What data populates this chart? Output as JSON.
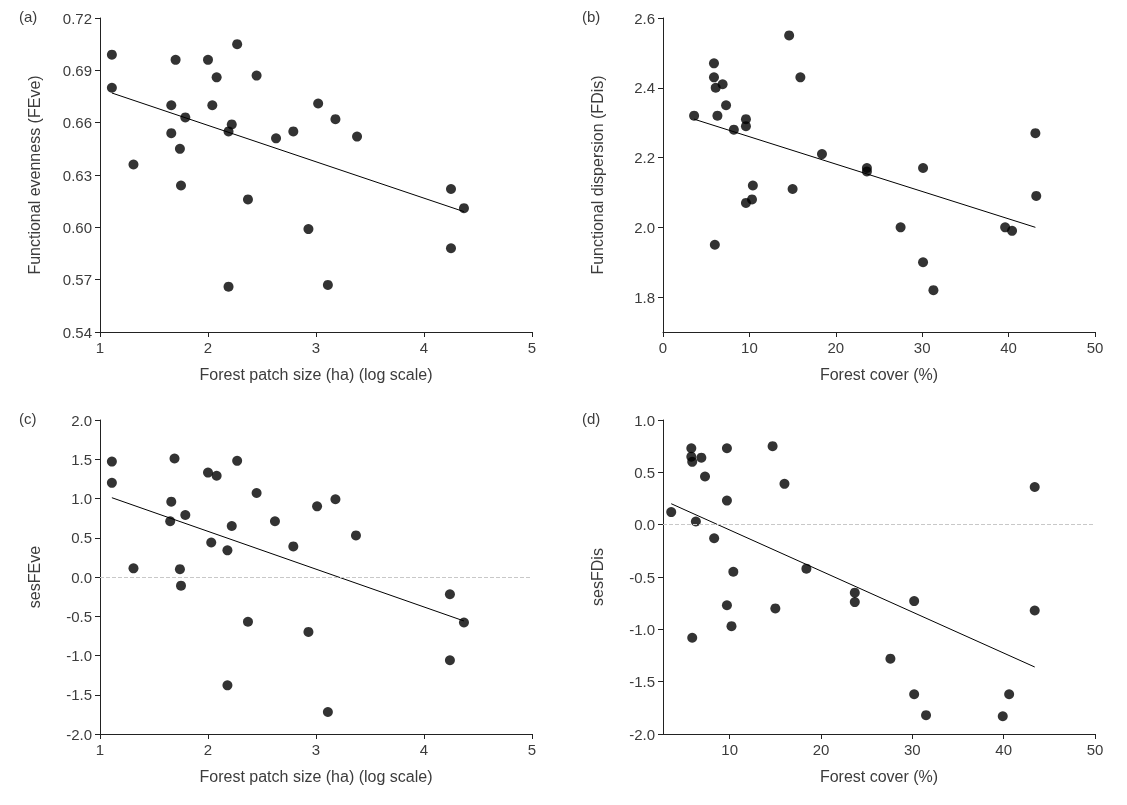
{
  "chart_data": [
    {
      "type": "scatter",
      "title": "(a)",
      "xlabel": "Forest patch size (ha) (log scale)",
      "ylabel": "Functional evenness (FEve)",
      "xlim": [
        1,
        5
      ],
      "xticks": [
        1,
        2,
        3,
        4,
        5
      ],
      "ylim": [
        0.54,
        0.72
      ],
      "yticks": [
        {
          "value": 0.54,
          "label": "0.54"
        },
        {
          "value": 0.57,
          "label": "0.57"
        },
        {
          "value": 0.6,
          "label": "0.60"
        },
        {
          "value": 0.63,
          "label": "0.63"
        },
        {
          "value": 0.66,
          "label": "0.66"
        },
        {
          "value": 0.69,
          "label": "0.69"
        },
        {
          "value": 0.72,
          "label": "0.72"
        }
      ],
      "marker": "circle",
      "series": [
        {
          "color": "#000000",
          "x": [
            1.11,
            1.11,
            1.7,
            2.0,
            2.27,
            2.08,
            2.45,
            1.66,
            2.04,
            3.02,
            1.79,
            3.18,
            2.22,
            2.19,
            1.66,
            2.79,
            2.63,
            3.38,
            1.74,
            1.31,
            1.75,
            2.37,
            4.25,
            4.37,
            2.93,
            4.25,
            2.19,
            3.11
          ],
          "values": [
            0.699,
            0.68,
            0.696,
            0.696,
            0.705,
            0.686,
            0.687,
            0.67,
            0.67,
            0.671,
            0.663,
            0.662,
            0.659,
            0.655,
            0.654,
            0.655,
            0.651,
            0.652,
            0.645,
            0.636,
            0.624,
            0.616,
            0.622,
            0.611,
            0.599,
            0.588,
            0.566,
            0.567
          ]
        },
        {
          "type": "line",
          "color": "#000000",
          "marker": "none",
          "x": [
            1.11,
            4.37
          ],
          "values": [
            0.677,
            0.609
          ]
        }
      ]
    },
    {
      "type": "scatter",
      "title": "(b)",
      "xlabel": "Forest cover (%)",
      "ylabel": "Functional dispersion (FDis)",
      "xlim": [
        0,
        50
      ],
      "xticks": [
        0,
        10,
        20,
        30,
        40,
        50
      ],
      "ylim": [
        1.7,
        2.6
      ],
      "yticks": [
        {
          "value": 1.8,
          "label": "1.8"
        },
        {
          "value": 2.0,
          "label": "2.0"
        },
        {
          "value": 2.2,
          "label": "2.2"
        },
        {
          "value": 2.4,
          "label": "2.4"
        },
        {
          "value": 2.6,
          "label": "2.6"
        }
      ],
      "marker": "circle",
      "series": [
        {
          "color": "#000000",
          "x": [
            3.6,
            5.9,
            5.9,
            6.1,
            6.9,
            6.3,
            7.3,
            8.2,
            9.6,
            9.6,
            14.6,
            15.9,
            18.4,
            23.6,
            23.6,
            30.1,
            43.1,
            43.2,
            10.4,
            10.3,
            9.6,
            15.0,
            27.5,
            39.6,
            40.4,
            6.0,
            30.1,
            31.3
          ],
          "values": [
            2.32,
            2.47,
            2.43,
            2.4,
            2.41,
            2.32,
            2.35,
            2.28,
            2.31,
            2.29,
            2.55,
            2.43,
            2.21,
            2.17,
            2.16,
            2.17,
            2.27,
            2.09,
            2.12,
            2.08,
            2.07,
            2.11,
            2.0,
            2.0,
            1.99,
            1.95,
            1.9,
            1.82
          ]
        },
        {
          "type": "line",
          "color": "#000000",
          "marker": "none",
          "x": [
            3.6,
            43.1
          ],
          "values": [
            2.31,
            2.0
          ]
        }
      ]
    },
    {
      "type": "scatter",
      "title": "(c)",
      "xlabel": "Forest patch size (ha) (log scale)",
      "ylabel": "sesFEve",
      "xlim": [
        1,
        5
      ],
      "xticks": [
        1,
        2,
        3,
        4,
        5
      ],
      "ylim": [
        -2,
        2
      ],
      "yticks": [
        {
          "value": -2,
          "label": "-2.0"
        },
        {
          "value": -1.5,
          "label": "-1.5"
        },
        {
          "value": -1,
          "label": "-1.0"
        },
        {
          "value": -0.5,
          "label": "-0.5"
        },
        {
          "value": 0,
          "label": "0.0"
        },
        {
          "value": 0.5,
          "label": "0.5"
        },
        {
          "value": 1,
          "label": "1.0"
        },
        {
          "value": 1.5,
          "label": "1.5"
        },
        {
          "value": 2,
          "label": "2.0"
        }
      ],
      "marker": "circle",
      "ref_lines": [
        {
          "axis": "y",
          "value": 0,
          "color": "#c8c8c8",
          "line_style": "dashed"
        }
      ],
      "series": [
        {
          "color": "#000000",
          "x": [
            1.11,
            1.11,
            1.69,
            2.27,
            2.0,
            2.08,
            2.45,
            3.18,
            1.66,
            3.01,
            1.79,
            1.65,
            2.62,
            2.22,
            3.37,
            2.03,
            2.79,
            2.18,
            1.31,
            1.74,
            1.75,
            4.24,
            2.37,
            4.37,
            2.93,
            4.24,
            2.18,
            3.11
          ],
          "values": [
            1.47,
            1.2,
            1.51,
            1.48,
            1.33,
            1.29,
            1.07,
            0.99,
            0.96,
            0.9,
            0.79,
            0.71,
            0.71,
            0.65,
            0.53,
            0.44,
            0.39,
            0.34,
            0.11,
            0.1,
            -0.11,
            -0.22,
            -0.57,
            -0.58,
            -0.7,
            -1.06,
            -1.38,
            -1.72
          ]
        },
        {
          "type": "line",
          "color": "#000000",
          "marker": "none",
          "x": [
            1.11,
            4.37
          ],
          "values": [
            1.01,
            -0.56
          ]
        }
      ]
    },
    {
      "type": "scatter",
      "title": "(d)",
      "xlabel": "Forest cover (%)",
      "ylabel": "sesFDis",
      "xlim": [
        2.7,
        50
      ],
      "xticks": [
        10,
        20,
        30,
        40,
        50
      ],
      "ylim": [
        -2,
        1
      ],
      "yticks": [
        {
          "value": -2,
          "label": "-2.0"
        },
        {
          "value": -1.5,
          "label": "-1.5"
        },
        {
          "value": -1,
          "label": "-1.0"
        },
        {
          "value": -0.5,
          "label": "-0.5"
        },
        {
          "value": 0,
          "label": "0.0"
        },
        {
          "value": 0.5,
          "label": "0.5"
        },
        {
          "value": 1,
          "label": "1.0"
        }
      ],
      "marker": "circle",
      "ref_lines": [
        {
          "axis": "y",
          "value": 0,
          "color": "#c8c8c8",
          "line_style": "dashed"
        }
      ],
      "series": [
        {
          "color": "#000000",
          "x": [
            3.6,
            5.8,
            5.8,
            5.9,
            6.9,
            7.3,
            9.7,
            14.7,
            16.0,
            9.7,
            6.3,
            8.3,
            43.4,
            10.4,
            18.4,
            23.7,
            23.7,
            30.2,
            9.7,
            15.0,
            43.4,
            10.2,
            5.9,
            27.6,
            30.2,
            40.6,
            31.5,
            39.9
          ],
          "values": [
            0.12,
            0.73,
            0.65,
            0.6,
            0.64,
            0.46,
            0.73,
            0.75,
            0.39,
            0.23,
            0.03,
            -0.13,
            0.36,
            -0.45,
            -0.42,
            -0.65,
            -0.74,
            -0.73,
            -0.77,
            -0.8,
            -0.82,
            -0.97,
            -1.08,
            -1.28,
            -1.62,
            -1.62,
            -1.82,
            -1.83
          ]
        },
        {
          "type": "line",
          "color": "#000000",
          "marker": "none",
          "x": [
            3.6,
            43.4
          ],
          "values": [
            0.2,
            -1.36
          ]
        }
      ]
    }
  ]
}
